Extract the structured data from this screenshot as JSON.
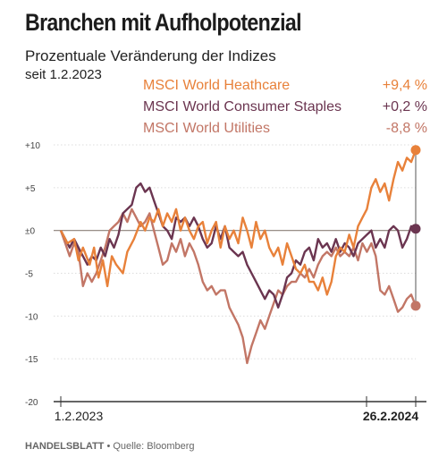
{
  "title": "Branchen mit Aufholpotenzial",
  "subtitle": "Prozentuale Veränderung der Indizes",
  "since_label": "seit 1.2.2023",
  "legend": [
    {
      "name": "MSCI World Heathcare",
      "value": "+9,4 %",
      "color": "#e8813a"
    },
    {
      "name": "MSCI World Consumer Staples",
      "value": "+0,2 %",
      "color": "#6b3550"
    },
    {
      "name": "MSCI World Utilities",
      "value": "-8,8 %",
      "color": "#c27666"
    }
  ],
  "footer": {
    "brand": "HANDELSBLATT",
    "separator": " • ",
    "source_label": "Quelle:",
    "source": "Bloomberg"
  },
  "chart_data": {
    "type": "line",
    "ylim": [
      -20,
      10
    ],
    "yticks": [
      10,
      5,
      0,
      -5,
      -10,
      -15,
      -20
    ],
    "ytick_labels": [
      "+10",
      "+5",
      "±0",
      "-5",
      "-10",
      "-15",
      "-20"
    ],
    "xstart": "2023-02-01",
    "xend": "2024-02-26",
    "xtick_labels": [
      "1.2.2023",
      "26.2.2024"
    ],
    "end_label_bold": "26.2.2024",
    "series": [
      {
        "name": "MSCI World Heathcare",
        "color": "#e8813a",
        "points": [
          [
            0,
            0
          ],
          [
            3,
            -1.5
          ],
          [
            6,
            -1
          ],
          [
            8,
            -3.5
          ],
          [
            10,
            -2
          ],
          [
            13,
            -4
          ],
          [
            15,
            -2
          ],
          [
            17,
            -5.5
          ],
          [
            19,
            -3.5
          ],
          [
            21,
            -6.5
          ],
          [
            23,
            -3
          ],
          [
            25,
            -4
          ],
          [
            28,
            -5
          ],
          [
            30,
            -2.5
          ],
          [
            33,
            -1
          ],
          [
            36,
            1
          ],
          [
            38,
            0
          ],
          [
            40,
            1.5
          ],
          [
            42,
            1
          ],
          [
            44,
            2.5
          ],
          [
            46,
            0.5
          ],
          [
            48,
            2
          ],
          [
            50,
            1
          ],
          [
            52,
            2.5
          ],
          [
            54,
            0
          ],
          [
            56,
            1.5
          ],
          [
            58,
            0
          ],
          [
            60,
            -1
          ],
          [
            62,
            0.5
          ],
          [
            64,
            1
          ],
          [
            66,
            -1.5
          ],
          [
            68,
            0
          ],
          [
            70,
            1
          ],
          [
            72,
            -2
          ],
          [
            74,
            0.5
          ],
          [
            76,
            -1
          ],
          [
            78,
            0
          ],
          [
            80,
            -1.5
          ],
          [
            82,
            1.5
          ],
          [
            84,
            0
          ],
          [
            86,
            -2
          ],
          [
            88,
            1
          ],
          [
            90,
            -1
          ],
          [
            92,
            0
          ],
          [
            94,
            -2
          ],
          [
            96,
            -3
          ],
          [
            98,
            -2
          ],
          [
            100,
            -4
          ],
          [
            102,
            -1.5
          ],
          [
            104,
            -3
          ],
          [
            106,
            -4.5
          ],
          [
            108,
            -5
          ],
          [
            110,
            -4
          ],
          [
            112,
            -6
          ],
          [
            114,
            -6
          ],
          [
            116,
            -7
          ],
          [
            118,
            -5.5
          ],
          [
            120,
            -7.5
          ],
          [
            122,
            -6
          ],
          [
            124,
            -3
          ],
          [
            126,
            -2
          ],
          [
            128,
            -2.5
          ],
          [
            130,
            -0.5
          ],
          [
            132,
            -2
          ],
          [
            134,
            0.5
          ],
          [
            136,
            1.5
          ],
          [
            138,
            2.5
          ],
          [
            140,
            5
          ],
          [
            142,
            6
          ],
          [
            144,
            4.5
          ],
          [
            146,
            5.5
          ],
          [
            148,
            3.5
          ],
          [
            150,
            6
          ],
          [
            152,
            8
          ],
          [
            154,
            7
          ],
          [
            156,
            8.5
          ],
          [
            158,
            8
          ],
          [
            160,
            9.4
          ]
        ]
      },
      {
        "name": "MSCI World Consumer Staples",
        "color": "#6b3550",
        "points": [
          [
            0,
            0
          ],
          [
            2,
            -1
          ],
          [
            4,
            -2
          ],
          [
            6,
            -1
          ],
          [
            8,
            -2
          ],
          [
            10,
            -3
          ],
          [
            12,
            -4
          ],
          [
            14,
            -3
          ],
          [
            16,
            -3.5
          ],
          [
            18,
            -2
          ],
          [
            20,
            -3
          ],
          [
            22,
            -1
          ],
          [
            24,
            -2
          ],
          [
            26,
            -0.5
          ],
          [
            28,
            2
          ],
          [
            30,
            2.5
          ],
          [
            32,
            3
          ],
          [
            34,
            5
          ],
          [
            36,
            5.5
          ],
          [
            38,
            4.5
          ],
          [
            40,
            5
          ],
          [
            42,
            3.5
          ],
          [
            44,
            2
          ],
          [
            46,
            0.5
          ],
          [
            48,
            0
          ],
          [
            50,
            -1
          ],
          [
            52,
            1.5
          ],
          [
            54,
            1
          ],
          [
            56,
            1.5
          ],
          [
            58,
            0.5
          ],
          [
            60,
            1.5
          ],
          [
            62,
            0.5
          ],
          [
            64,
            -1
          ],
          [
            66,
            -2
          ],
          [
            68,
            -1.5
          ],
          [
            70,
            0.5
          ],
          [
            72,
            -1
          ],
          [
            74,
            0.5
          ],
          [
            76,
            -2
          ],
          [
            78,
            -2.5
          ],
          [
            80,
            -3
          ],
          [
            82,
            -2.5
          ],
          [
            84,
            -4
          ],
          [
            86,
            -5
          ],
          [
            88,
            -6
          ],
          [
            90,
            -7
          ],
          [
            92,
            -8
          ],
          [
            94,
            -7
          ],
          [
            96,
            -7.5
          ],
          [
            98,
            -9
          ],
          [
            100,
            -7.5
          ],
          [
            102,
            -5.5
          ],
          [
            104,
            -5
          ],
          [
            106,
            -3.5
          ],
          [
            108,
            -4
          ],
          [
            110,
            -2.5
          ],
          [
            112,
            -2
          ],
          [
            114,
            -3.5
          ],
          [
            116,
            -1
          ],
          [
            118,
            -2
          ],
          [
            120,
            -1.5
          ],
          [
            122,
            -2.5
          ],
          [
            124,
            -1
          ],
          [
            126,
            -2.5
          ],
          [
            128,
            -1.5
          ],
          [
            130,
            -2
          ],
          [
            132,
            -3
          ],
          [
            134,
            -1.5
          ],
          [
            136,
            -1
          ],
          [
            138,
            -0.5
          ],
          [
            140,
            0
          ],
          [
            142,
            -2
          ],
          [
            144,
            -1
          ],
          [
            146,
            -2
          ],
          [
            148,
            0
          ],
          [
            150,
            0.5
          ],
          [
            152,
            0
          ],
          [
            154,
            -2
          ],
          [
            156,
            -1
          ],
          [
            158,
            0.5
          ],
          [
            160,
            0.2
          ]
        ]
      },
      {
        "name": "MSCI World Utilities",
        "color": "#c27666",
        "points": [
          [
            0,
            0
          ],
          [
            2,
            -1.5
          ],
          [
            4,
            -3
          ],
          [
            6,
            -1.5
          ],
          [
            8,
            -2.5
          ],
          [
            10,
            -6.5
          ],
          [
            12,
            -5
          ],
          [
            14,
            -6
          ],
          [
            16,
            -5
          ],
          [
            18,
            -3.5
          ],
          [
            20,
            -2
          ],
          [
            22,
            0
          ],
          [
            24,
            0.5
          ],
          [
            26,
            1
          ],
          [
            28,
            2
          ],
          [
            30,
            1
          ],
          [
            32,
            2.5
          ],
          [
            34,
            1.5
          ],
          [
            36,
            0.5
          ],
          [
            38,
            1
          ],
          [
            40,
            2
          ],
          [
            42,
            0
          ],
          [
            44,
            -2
          ],
          [
            46,
            -4
          ],
          [
            48,
            -3.5
          ],
          [
            50,
            -1.5
          ],
          [
            52,
            -2.5
          ],
          [
            54,
            -1
          ],
          [
            56,
            -3
          ],
          [
            58,
            -1.5
          ],
          [
            60,
            -2.5
          ],
          [
            62,
            -4
          ],
          [
            64,
            -6
          ],
          [
            66,
            -7
          ],
          [
            68,
            -6.5
          ],
          [
            70,
            -7.5
          ],
          [
            72,
            -7
          ],
          [
            74,
            -7
          ],
          [
            76,
            -9
          ],
          [
            78,
            -10
          ],
          [
            80,
            -11
          ],
          [
            82,
            -12.5
          ],
          [
            84,
            -15.5
          ],
          [
            86,
            -13.5
          ],
          [
            88,
            -12
          ],
          [
            90,
            -10.5
          ],
          [
            92,
            -11.5
          ],
          [
            94,
            -10
          ],
          [
            96,
            -8.5
          ],
          [
            98,
            -7
          ],
          [
            100,
            -7.5
          ],
          [
            102,
            -6.5
          ],
          [
            104,
            -6
          ],
          [
            106,
            -6
          ],
          [
            108,
            -5
          ],
          [
            110,
            -5.5
          ],
          [
            112,
            -4.5
          ],
          [
            114,
            -5.5
          ],
          [
            116,
            -4
          ],
          [
            118,
            -3
          ],
          [
            120,
            -2.5
          ],
          [
            122,
            -3
          ],
          [
            124,
            -2
          ],
          [
            126,
            -3
          ],
          [
            128,
            -2.5
          ],
          [
            130,
            -3
          ],
          [
            132,
            -2
          ],
          [
            134,
            -3.5
          ],
          [
            136,
            -1.5
          ],
          [
            138,
            -2.5
          ],
          [
            140,
            -1.5
          ],
          [
            142,
            -3
          ],
          [
            144,
            -7
          ],
          [
            146,
            -7.5
          ],
          [
            148,
            -6.5
          ],
          [
            150,
            -8
          ],
          [
            152,
            -9.5
          ],
          [
            154,
            -9
          ],
          [
            156,
            -8
          ],
          [
            158,
            -7.5
          ],
          [
            160,
            -8.8
          ]
        ]
      }
    ]
  }
}
